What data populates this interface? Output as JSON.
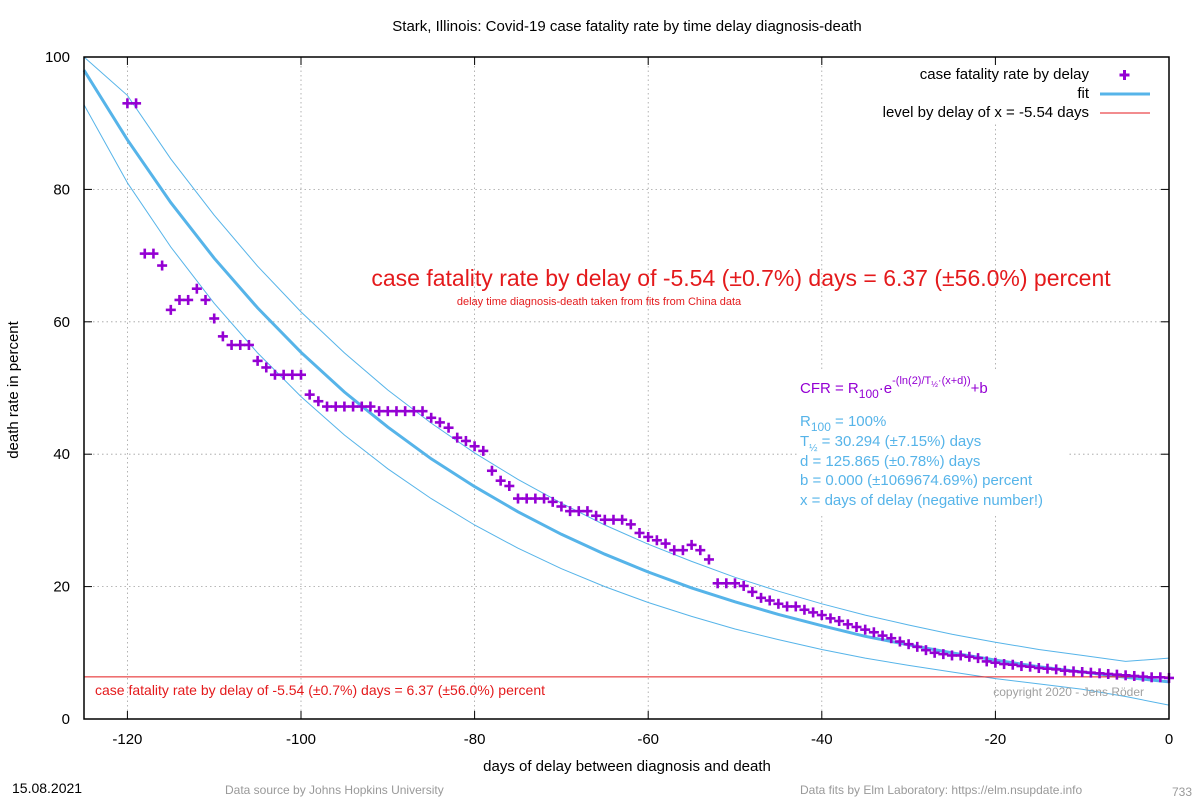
{
  "chart_data": {
    "type": "scatter",
    "title": "Stark,  Illinois: Covid-19 case fatality rate by time delay diagnosis-death",
    "xlabel": "days of delay between diagnosis and death",
    "ylabel": "death rate in percent",
    "xlim": [
      -125,
      0
    ],
    "ylim": [
      0,
      100
    ],
    "x_ticks": [
      -120,
      -100,
      -80,
      -60,
      -40,
      -20,
      0
    ],
    "y_ticks": [
      0,
      20,
      40,
      60,
      80,
      100
    ],
    "grid": true,
    "legend_position": "top-right",
    "legend": [
      {
        "label": "case fatality rate by delay",
        "color": "#9400d3"
      },
      {
        "label": "fit",
        "color": "#56b4e9"
      },
      {
        "label": "level by delay of x = -5.54 days",
        "color": "#e41a1c"
      }
    ],
    "series": [
      {
        "name": "case fatality rate by delay",
        "color": "#9400d3",
        "points": [
          [
            -120,
            93
          ],
          [
            -119,
            93
          ],
          [
            -118,
            70.3
          ],
          [
            -117,
            70.3
          ],
          [
            -116,
            68.5
          ],
          [
            -115,
            61.8
          ],
          [
            -114,
            63.3
          ],
          [
            -113,
            63.3
          ],
          [
            -112,
            65
          ],
          [
            -111,
            63.3
          ],
          [
            -110,
            60.5
          ],
          [
            -109,
            57.8
          ],
          [
            -108,
            56.5
          ],
          [
            -107,
            56.5
          ],
          [
            -106,
            56.5
          ],
          [
            -105,
            54.1
          ],
          [
            -104,
            53.1
          ],
          [
            -103,
            52
          ],
          [
            -102,
            52
          ],
          [
            -101,
            52
          ],
          [
            -100,
            52
          ],
          [
            -99,
            49
          ],
          [
            -98,
            48
          ],
          [
            -97,
            47.2
          ],
          [
            -96,
            47.2
          ],
          [
            -95,
            47.2
          ],
          [
            -94,
            47.2
          ],
          [
            -93,
            47.2
          ],
          [
            -92,
            47.2
          ],
          [
            -91,
            46.5
          ],
          [
            -90,
            46.5
          ],
          [
            -89,
            46.5
          ],
          [
            -88,
            46.5
          ],
          [
            -87,
            46.5
          ],
          [
            -86,
            46.5
          ],
          [
            -85,
            45.5
          ],
          [
            -84,
            44.8
          ],
          [
            -83,
            44
          ],
          [
            -82,
            42.5
          ],
          [
            -81,
            42
          ],
          [
            -80,
            41.2
          ],
          [
            -79,
            40.5
          ],
          [
            -78,
            37.5
          ],
          [
            -77,
            36
          ],
          [
            -76,
            35.2
          ],
          [
            -75,
            33.3
          ],
          [
            -74,
            33.3
          ],
          [
            -73,
            33.3
          ],
          [
            -72,
            33.3
          ],
          [
            -71,
            32.8
          ],
          [
            -70,
            32.1
          ],
          [
            -69,
            31.4
          ],
          [
            -68,
            31.4
          ],
          [
            -67,
            31.4
          ],
          [
            -66,
            30.7
          ],
          [
            -65,
            30.1
          ],
          [
            -64,
            30.1
          ],
          [
            -63,
            30.1
          ],
          [
            -62,
            29.4
          ],
          [
            -61,
            28.1
          ],
          [
            -60,
            27.5
          ],
          [
            -59,
            27
          ],
          [
            -58,
            26.5
          ],
          [
            -57,
            25.5
          ],
          [
            -56,
            25.5
          ],
          [
            -55,
            26.3
          ],
          [
            -54,
            25.5
          ],
          [
            -53,
            24.1
          ],
          [
            -52,
            20.5
          ],
          [
            -51,
            20.5
          ],
          [
            -50,
            20.5
          ],
          [
            -49,
            20.1
          ],
          [
            -48,
            19.2
          ],
          [
            -47,
            18.3
          ],
          [
            -46,
            17.9
          ],
          [
            -45,
            17.4
          ],
          [
            -44,
            17
          ],
          [
            -43,
            17
          ],
          [
            -42,
            16.5
          ],
          [
            -41,
            16.1
          ],
          [
            -40,
            15.7
          ],
          [
            -39,
            15.2
          ],
          [
            -38,
            14.8
          ],
          [
            -37,
            14.3
          ],
          [
            -36,
            13.9
          ],
          [
            -35,
            13.5
          ],
          [
            -34,
            13.1
          ],
          [
            -33,
            12.6
          ],
          [
            -32,
            12.2
          ],
          [
            -31,
            11.7
          ],
          [
            -30,
            11.3
          ],
          [
            -29,
            10.9
          ],
          [
            -28,
            10.4
          ],
          [
            -27,
            10
          ],
          [
            -26,
            9.8
          ],
          [
            -25,
            9.6
          ],
          [
            -24,
            9.6
          ],
          [
            -23,
            9.4
          ],
          [
            -22,
            9.2
          ],
          [
            -21,
            8.7
          ],
          [
            -20,
            8.5
          ],
          [
            -19,
            8.3
          ],
          [
            -18,
            8.2
          ],
          [
            -17,
            8
          ],
          [
            -16,
            7.9
          ],
          [
            -15,
            7.7
          ],
          [
            -14,
            7.6
          ],
          [
            -13,
            7.5
          ],
          [
            -12,
            7.3
          ],
          [
            -11,
            7.2
          ],
          [
            -10,
            7.1
          ],
          [
            -9,
            7
          ],
          [
            -8,
            6.9
          ],
          [
            -7,
            6.8
          ],
          [
            -6,
            6.7
          ],
          [
            -5,
            6.6
          ],
          [
            -4,
            6.5
          ],
          [
            -3,
            6.4
          ],
          [
            -2,
            6.3
          ],
          [
            -1,
            6.3
          ],
          [
            0,
            6.2
          ]
        ]
      },
      {
        "name": "fit",
        "color": "#56b4e9",
        "function": "100*exp(-(ln2/30.294)*(x+125.865))",
        "points": [
          [
            -125,
            98.0
          ],
          [
            -120,
            87.5
          ],
          [
            -115,
            78.0
          ],
          [
            -110,
            69.6
          ],
          [
            -105,
            62.1
          ],
          [
            -100,
            55.4
          ],
          [
            -95,
            49.4
          ],
          [
            -90,
            44.1
          ],
          [
            -85,
            39.3
          ],
          [
            -80,
            35.1
          ],
          [
            -75,
            31.3
          ],
          [
            -70,
            27.9
          ],
          [
            -65,
            24.9
          ],
          [
            -60,
            22.2
          ],
          [
            -55,
            19.8
          ],
          [
            -50,
            17.7
          ],
          [
            -45,
            15.8
          ],
          [
            -40,
            14.1
          ],
          [
            -35,
            12.5
          ],
          [
            -30,
            11.2
          ],
          [
            -25,
            10.0
          ],
          [
            -20,
            8.9
          ],
          [
            -15,
            7.9
          ],
          [
            -10,
            7.1
          ],
          [
            -5,
            6.3
          ],
          [
            0,
            5.6
          ]
        ]
      },
      {
        "name": "",
        "color": "#56b4e9",
        "points": [
          [
            -125,
            100
          ],
          [
            -120,
            94.2
          ],
          [
            -115,
            84.6
          ],
          [
            -110,
            76.1
          ],
          [
            -105,
            68.4
          ],
          [
            -100,
            61.5
          ],
          [
            -95,
            55.3
          ],
          [
            -90,
            49.7
          ],
          [
            -85,
            44.7
          ],
          [
            -80,
            40.2
          ],
          [
            -75,
            36.2
          ],
          [
            -70,
            32.6
          ],
          [
            -65,
            29.3
          ],
          [
            -60,
            26.4
          ],
          [
            -55,
            23.8
          ],
          [
            -50,
            21.4
          ],
          [
            -45,
            19.3
          ],
          [
            -40,
            17.4
          ],
          [
            -35,
            15.7
          ],
          [
            -30,
            14.2
          ],
          [
            -25,
            12.8
          ],
          [
            -20,
            11.6
          ],
          [
            -15,
            10.5
          ],
          [
            -10,
            9.6
          ],
          [
            -5,
            8.7
          ],
          [
            0,
            9.2
          ]
        ]
      },
      {
        "name": "",
        "color": "#56b4e9",
        "points": [
          [
            -125,
            92.8
          ],
          [
            -120,
            81.0
          ],
          [
            -115,
            71.3
          ],
          [
            -110,
            62.8
          ],
          [
            -105,
            55.3
          ],
          [
            -100,
            48.7
          ],
          [
            -95,
            42.9
          ],
          [
            -90,
            37.8
          ],
          [
            -85,
            33.3
          ],
          [
            -80,
            29.3
          ],
          [
            -75,
            25.8
          ],
          [
            -70,
            22.7
          ],
          [
            -65,
            20.0
          ],
          [
            -60,
            17.6
          ],
          [
            -55,
            15.5
          ],
          [
            -50,
            13.6
          ],
          [
            -45,
            12.0
          ],
          [
            -40,
            10.5
          ],
          [
            -35,
            9.2
          ],
          [
            -30,
            8.1
          ],
          [
            -25,
            7.1
          ],
          [
            -20,
            6.1
          ],
          [
            -15,
            5.3
          ],
          [
            -10,
            4.5
          ],
          [
            -5,
            3.4
          ],
          [
            0,
            2.1
          ]
        ]
      },
      {
        "name": "level by delay of x = -5.54 days",
        "color": "#e41a1c",
        "y": 6.37
      }
    ],
    "annotations": {
      "headline": "case fatality rate by delay of -5.54 (±0.7%) days = 6.37 (±56.0%) percent",
      "subline": "delay time diagnosis-death taken from fits from China data",
      "formula_main": "CFR = R",
      "formula_sub100": "100",
      "formula_e": "·e",
      "formula_sup": "-(ln(2)/T",
      "formula_sup_half": "½",
      "formula_sup_end": "·(x+d))",
      "formula_tail": "+b",
      "param_r_main": "R",
      "param_r_sub": "100",
      "param_r_rest": " = 100%",
      "param_t_main": "T",
      "param_t_sub": "½",
      "param_t_rest": " = 30.294 (±7.15%) days",
      "param_d": "d = 125.865 (±0.78%) days",
      "param_b": "b = 0.000 (±1069674.69%) percent",
      "param_x": "x = days of delay (negative number!)",
      "level_label": "case fatality rate by delay of -5.54 (±0.7%) days = 6.37 (±56.0%) percent",
      "copyright": "copyright 2020 - Jens Röder"
    }
  },
  "footer": {
    "date": "15.08.2021",
    "source": "Data source by Johns Hopkins University",
    "fits": "Data fits by Elm Laboratory: https://elm.nsupdate.info",
    "number": "733"
  },
  "colors": {
    "data": "#9400d3",
    "fit": "#56b4e9",
    "level": "#e41a1c",
    "grid": "#a0a0a0"
  }
}
